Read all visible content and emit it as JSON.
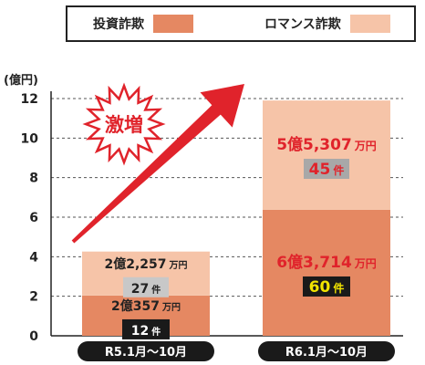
{
  "chart_data": {
    "type": "bar",
    "stacked": true,
    "categories": [
      "R5.1月〜10月",
      "R6.1月〜10月"
    ],
    "series": [
      {
        "name": "投資詐欺",
        "values": [
          2.0357,
          6.3714
        ],
        "value_labels": [
          "2億357",
          "6億3,714"
        ],
        "count_labels": [
          "12",
          "60"
        ]
      },
      {
        "name": "ロマンス詐欺",
        "values": [
          2.2257,
          5.5307
        ],
        "value_labels": [
          "2億2,257",
          "5億5,307"
        ],
        "count_labels": [
          "27",
          "45"
        ]
      }
    ],
    "yunit": "(億円)",
    "ylim": [
      0,
      12
    ],
    "yticks": [
      "0",
      "2",
      "4",
      "6",
      "8",
      "10",
      "12"
    ],
    "value_unit": "万円",
    "count_unit": "件",
    "annotation": "激増",
    "legend_position": "top",
    "grid": true,
    "colors": {
      "investment": "#E58862",
      "romance": "#F6C4A8",
      "arrow": "#E0232B",
      "burst_label": "#E0232B",
      "r6_value_text": "#E0232B",
      "r6_count_text": "#F2E400",
      "count_badge": "#1a1a1a",
      "r6_romance_badge": "#A8A8A8",
      "r5_romance_badge": "#C8C8C8",
      "axis_label_bg": "#1a1a1a"
    }
  }
}
